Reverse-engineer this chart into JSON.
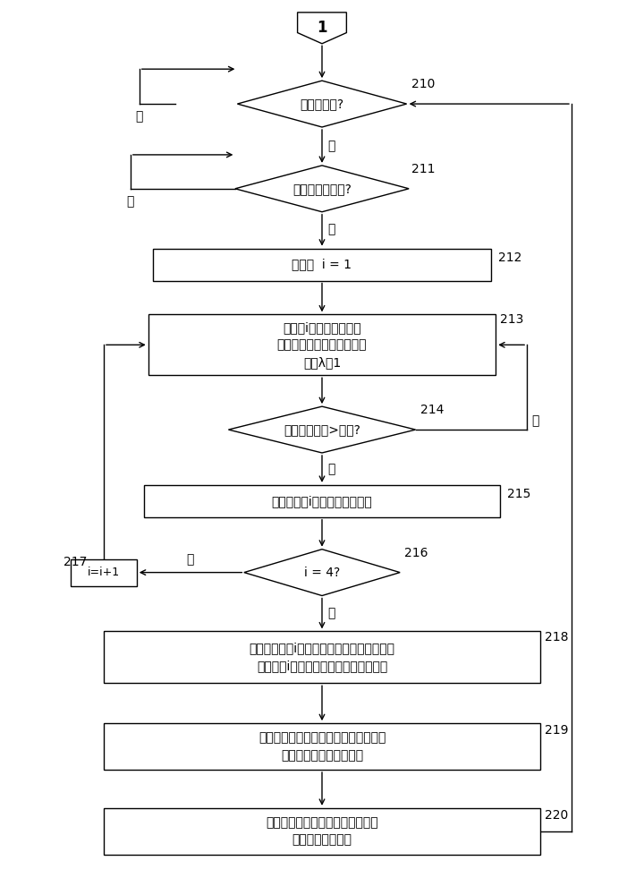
{
  "bg_color": "#ffffff",
  "line_color": "#000000",
  "font_size": 10,
  "small_font": 9,
  "nodes": {
    "start": {
      "label": "1"
    },
    "d210": {
      "label": "静止工作点?",
      "num": "210"
    },
    "d211": {
      "label": "工作参数＜阈值?",
      "num": "211"
    },
    "b212": {
      "label": "初始化  i = 1",
      "num": "212"
    },
    "b213": {
      "label": "在气缸i中减少燃料供给\n在其他气缸中提高燃料供给\n从而λ＝1",
      "num": "213"
    },
    "d214": {
      "label": "行驶不平稳性>阈值?",
      "num": "214"
    },
    "b215": {
      "label": "为各个气缸i存储燃料量减少值",
      "num": "215"
    },
    "d216": {
      "label": "i = 4?",
      "num": "216"
    },
    "b217": {
      "label": "i=i+1",
      "num": "217"
    },
    "b218": {
      "label": "在考虑对气缸i的燃料供给时的偏差的情况下\n为各气缸i求取并存储气缸充填时的偏差",
      "num": "218"
    },
    "b219": {
      "label": "基于气缸个性化的在气缸充填时的偏差\n调整气门机构的控制参量",
      "num": "219"
    },
    "b220": {
      "label": "在燃料供给时气缸个性化地考虑在\n气缸充填时的偏差",
      "num": "220"
    }
  },
  "yes_label": "是",
  "no_label": "否"
}
